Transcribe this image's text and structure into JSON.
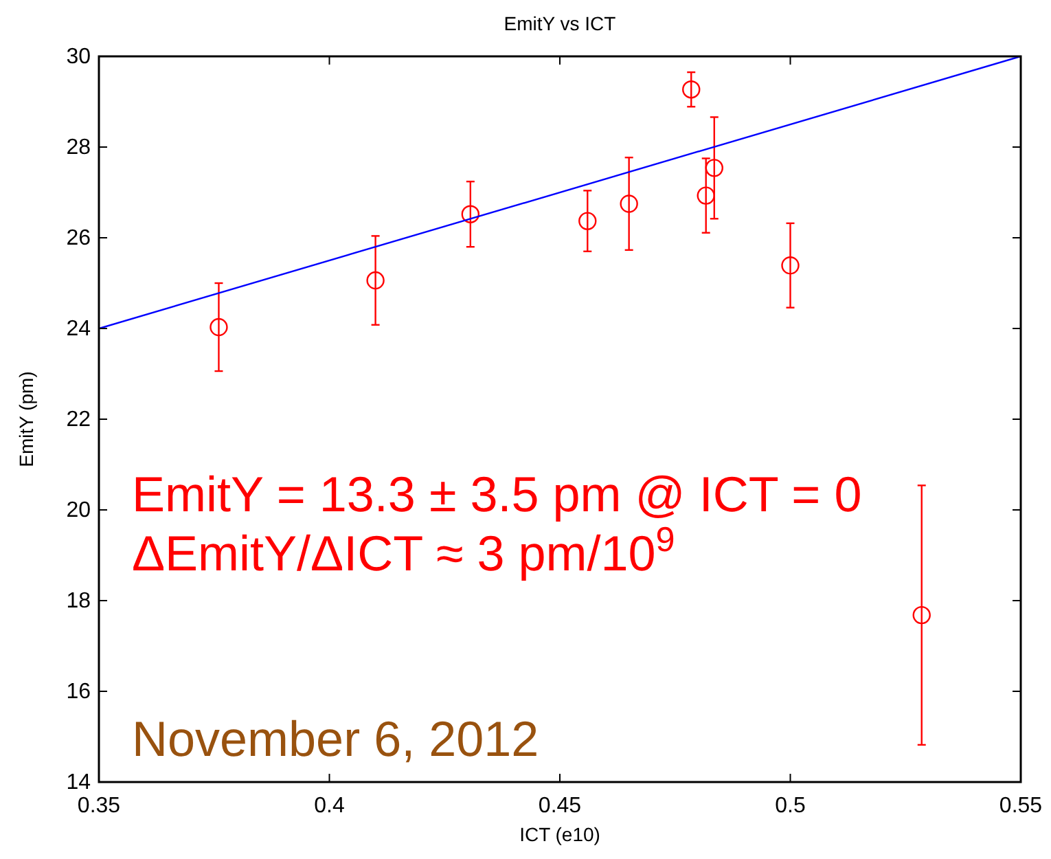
{
  "chart_data": {
    "type": "scatter",
    "title": "EmitY vs ICT",
    "xlabel": "ICT (e10)",
    "ylabel": "EmitY (pm)",
    "xlim": [
      0.35,
      0.55
    ],
    "xticks": [
      0.35,
      0.4,
      0.45,
      0.5,
      0.55
    ],
    "ylim": [
      14,
      30
    ],
    "yticks": [
      14,
      16,
      18,
      20,
      22,
      24,
      26,
      28,
      30
    ],
    "grid": false,
    "marker": "circle",
    "series": [
      {
        "type": "scatter",
        "color": "#ff0000",
        "x": [
          0.376,
          0.41,
          0.4306,
          0.456,
          0.465,
          0.4785,
          0.4817,
          0.4835,
          0.5,
          0.5285
        ],
        "values": [
          24.03,
          25.06,
          26.52,
          26.37,
          26.75,
          29.27,
          26.93,
          27.54,
          25.39,
          17.68
        ],
        "errors": [
          0.97,
          0.98,
          0.72,
          0.67,
          1.02,
          0.38,
          0.82,
          1.12,
          0.93,
          2.86
        ]
      },
      {
        "type": "line",
        "color": "#0000ff",
        "marker": "none",
        "x": [
          0.35,
          0.55
        ],
        "values": [
          24.0,
          30.0
        ]
      }
    ],
    "annotations": [
      "EmitY = 13.3 ± 3.5 pm @ ICT = 0",
      "ΔEmitY/ΔICT ≈ 3 pm/10$^{9}$",
      "November 6, 2012"
    ]
  }
}
